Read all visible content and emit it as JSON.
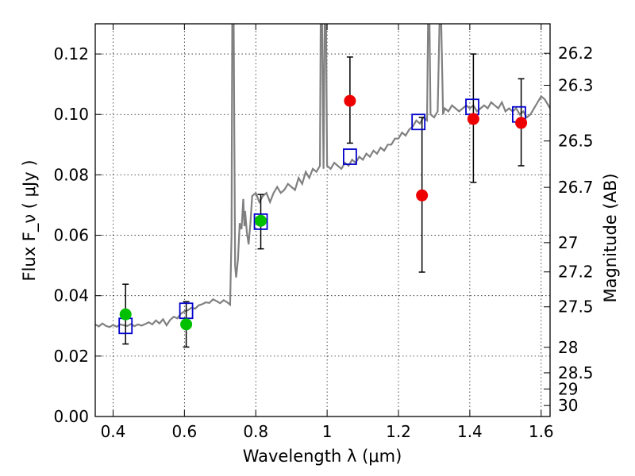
{
  "chart_data": {
    "type": "scatter",
    "xlabel": "Wavelength  λ (μm)",
    "ylabel": "Flux  F_ν  ( μJy )",
    "y2label": "Magnitude (AB)",
    "xlim": [
      0.35,
      1.625
    ],
    "ylim": [
      0.0,
      0.13
    ],
    "grid": true,
    "x_ticks": [
      "0.4",
      "0.6",
      "0.8",
      "1",
      "1.2",
      "1.4",
      "1.6"
    ],
    "x_tick_values": [
      0.4,
      0.6,
      0.8,
      1.0,
      1.2,
      1.4,
      1.6
    ],
    "y_ticks": [
      "0.00",
      "0.02",
      "0.04",
      "0.06",
      "0.08",
      "0.10",
      "0.12"
    ],
    "y_tick_values": [
      0.0,
      0.02,
      0.04,
      0.06,
      0.08,
      0.1,
      0.12
    ],
    "mag_ticks": [
      "26.2",
      "26.3",
      "26.5",
      "26.7",
      "27",
      "27.2",
      "27.5",
      "28",
      "28.5",
      "29",
      "30"
    ],
    "mag_tick_values": [
      26.2,
      26.3,
      26.5,
      26.7,
      27.0,
      27.2,
      27.5,
      28.0,
      28.5,
      29.0,
      30.0
    ],
    "colors": {
      "spectrum": "#808080",
      "model_photometry": "#0000cc",
      "green_points": "#00c000",
      "red_points": "#ee0000",
      "error_bars": "#000000"
    },
    "series": [
      {
        "kind": "spectrum",
        "points": [
          [
            0.35,
            0.0305
          ],
          [
            0.36,
            0.0298
          ],
          [
            0.37,
            0.0308
          ],
          [
            0.38,
            0.03
          ],
          [
            0.39,
            0.0296
          ],
          [
            0.4,
            0.0303
          ],
          [
            0.41,
            0.0297
          ],
          [
            0.42,
            0.0305
          ],
          [
            0.43,
            0.0302
          ],
          [
            0.44,
            0.03
          ],
          [
            0.45,
            0.0306
          ],
          [
            0.46,
            0.0299
          ],
          [
            0.47,
            0.0305
          ],
          [
            0.48,
            0.0301
          ],
          [
            0.49,
            0.0306
          ],
          [
            0.5,
            0.0312
          ],
          [
            0.51,
            0.0305
          ],
          [
            0.52,
            0.0318
          ],
          [
            0.53,
            0.0308
          ],
          [
            0.54,
            0.0322
          ],
          [
            0.55,
            0.0302
          ],
          [
            0.56,
            0.032
          ],
          [
            0.57,
            0.033
          ],
          [
            0.58,
            0.0325
          ],
          [
            0.59,
            0.034
          ],
          [
            0.6,
            0.0348
          ],
          [
            0.61,
            0.0352
          ],
          [
            0.62,
            0.036
          ],
          [
            0.63,
            0.0357
          ],
          [
            0.64,
            0.0368
          ],
          [
            0.65,
            0.0372
          ],
          [
            0.66,
            0.0378
          ],
          [
            0.67,
            0.0376
          ],
          [
            0.68,
            0.0388
          ],
          [
            0.69,
            0.0382
          ],
          [
            0.7,
            0.0375
          ],
          [
            0.71,
            0.0385
          ],
          [
            0.72,
            0.0378
          ],
          [
            0.728,
            0.037
          ],
          [
            0.732,
            0.06
          ],
          [
            0.734,
            0.13
          ],
          [
            0.738,
            0.13
          ],
          [
            0.742,
            0.05
          ],
          [
            0.745,
            0.046
          ],
          [
            0.75,
            0.052
          ],
          [
            0.755,
            0.064
          ],
          [
            0.76,
            0.062
          ],
          [
            0.765,
            0.072
          ],
          [
            0.768,
            0.063
          ],
          [
            0.77,
            0.068
          ],
          [
            0.775,
            0.061
          ],
          [
            0.78,
            0.057
          ],
          [
            0.785,
            0.064
          ],
          [
            0.79,
            0.073
          ],
          [
            0.8,
            0.074
          ],
          [
            0.81,
            0.071
          ],
          [
            0.82,
            0.073
          ],
          [
            0.83,
            0.074
          ],
          [
            0.84,
            0.071
          ],
          [
            0.85,
            0.074
          ],
          [
            0.86,
            0.076
          ],
          [
            0.87,
            0.074
          ],
          [
            0.88,
            0.075
          ],
          [
            0.89,
            0.077
          ],
          [
            0.9,
            0.076
          ],
          [
            0.91,
            0.075
          ],
          [
            0.92,
            0.079
          ],
          [
            0.93,
            0.077
          ],
          [
            0.94,
            0.081
          ],
          [
            0.95,
            0.079
          ],
          [
            0.96,
            0.082
          ],
          [
            0.97,
            0.081
          ],
          [
            0.98,
            0.083
          ],
          [
            0.982,
            0.13
          ],
          [
            0.986,
            0.13
          ],
          [
            0.99,
            0.082
          ],
          [
            0.993,
            0.13
          ],
          [
            0.997,
            0.13
          ],
          [
            1.0,
            0.083
          ],
          [
            1.01,
            0.082
          ],
          [
            1.02,
            0.084
          ],
          [
            1.03,
            0.083
          ],
          [
            1.04,
            0.082
          ],
          [
            1.05,
            0.084
          ],
          [
            1.06,
            0.083
          ],
          [
            1.07,
            0.085
          ],
          [
            1.08,
            0.084
          ],
          [
            1.09,
            0.086
          ],
          [
            1.1,
            0.085
          ],
          [
            1.11,
            0.087
          ],
          [
            1.12,
            0.086
          ],
          [
            1.13,
            0.088
          ],
          [
            1.14,
            0.087
          ],
          [
            1.15,
            0.089
          ],
          [
            1.16,
            0.088
          ],
          [
            1.17,
            0.09
          ],
          [
            1.18,
            0.09
          ],
          [
            1.19,
            0.092
          ],
          [
            1.2,
            0.092
          ],
          [
            1.21,
            0.094
          ],
          [
            1.22,
            0.093
          ],
          [
            1.23,
            0.095
          ],
          [
            1.24,
            0.096
          ],
          [
            1.25,
            0.098
          ],
          [
            1.26,
            0.097
          ],
          [
            1.27,
            0.099
          ],
          [
            1.28,
            0.098
          ],
          [
            1.283,
            0.13
          ],
          [
            1.287,
            0.13
          ],
          [
            1.29,
            0.1
          ],
          [
            1.3,
            0.099
          ],
          [
            1.31,
            0.101
          ],
          [
            1.315,
            0.13
          ],
          [
            1.32,
            0.13
          ],
          [
            1.325,
            0.1
          ],
          [
            1.33,
            0.102
          ],
          [
            1.34,
            0.101
          ],
          [
            1.35,
            0.103
          ],
          [
            1.36,
            0.102
          ],
          [
            1.37,
            0.101
          ],
          [
            1.38,
            0.102
          ],
          [
            1.39,
            0.103
          ],
          [
            1.4,
            0.102
          ],
          [
            1.41,
            0.103
          ],
          [
            1.42,
            0.101
          ],
          [
            1.43,
            0.102
          ],
          [
            1.44,
            0.103
          ],
          [
            1.45,
            0.102
          ],
          [
            1.46,
            0.104
          ],
          [
            1.47,
            0.103
          ],
          [
            1.48,
            0.102
          ],
          [
            1.49,
            0.104
          ],
          [
            1.5,
            0.101
          ],
          [
            1.51,
            0.102
          ],
          [
            1.52,
            0.101
          ],
          [
            1.53,
            0.102
          ],
          [
            1.54,
            0.1
          ],
          [
            1.55,
            0.101
          ],
          [
            1.56,
            0.099
          ],
          [
            1.57,
            0.1
          ],
          [
            1.58,
            0.102
          ],
          [
            1.59,
            0.104
          ],
          [
            1.6,
            0.106
          ],
          [
            1.61,
            0.105
          ],
          [
            1.625,
            0.102
          ]
        ]
      },
      {
        "kind": "model_photometry",
        "points": [
          [
            0.435,
            0.03
          ],
          [
            0.605,
            0.035
          ],
          [
            0.814,
            0.0645
          ],
          [
            1.064,
            0.086
          ],
          [
            1.256,
            0.0975
          ],
          [
            1.407,
            0.1025
          ],
          [
            1.538,
            0.1
          ]
        ]
      },
      {
        "kind": "observed_green",
        "points": [
          {
            "x": 0.435,
            "y": 0.0338,
            "err_low": 0.024,
            "err_high": 0.0438
          },
          {
            "x": 0.605,
            "y": 0.0305,
            "err_low": 0.023,
            "err_high": 0.038
          },
          {
            "x": 0.814,
            "y": 0.0648,
            "err_low": 0.0555,
            "err_high": 0.0735
          }
        ]
      },
      {
        "kind": "observed_red",
        "points": [
          {
            "x": 1.064,
            "y": 0.1045,
            "err_low": 0.0905,
            "err_high": 0.119
          },
          {
            "x": 1.266,
            "y": 0.0732,
            "err_low": 0.0478,
            "err_high": 0.099
          },
          {
            "x": 1.41,
            "y": 0.0985,
            "err_low": 0.0775,
            "err_high": 0.12
          },
          {
            "x": 1.544,
            "y": 0.0972,
            "err_low": 0.083,
            "err_high": 0.1118
          }
        ]
      }
    ]
  }
}
